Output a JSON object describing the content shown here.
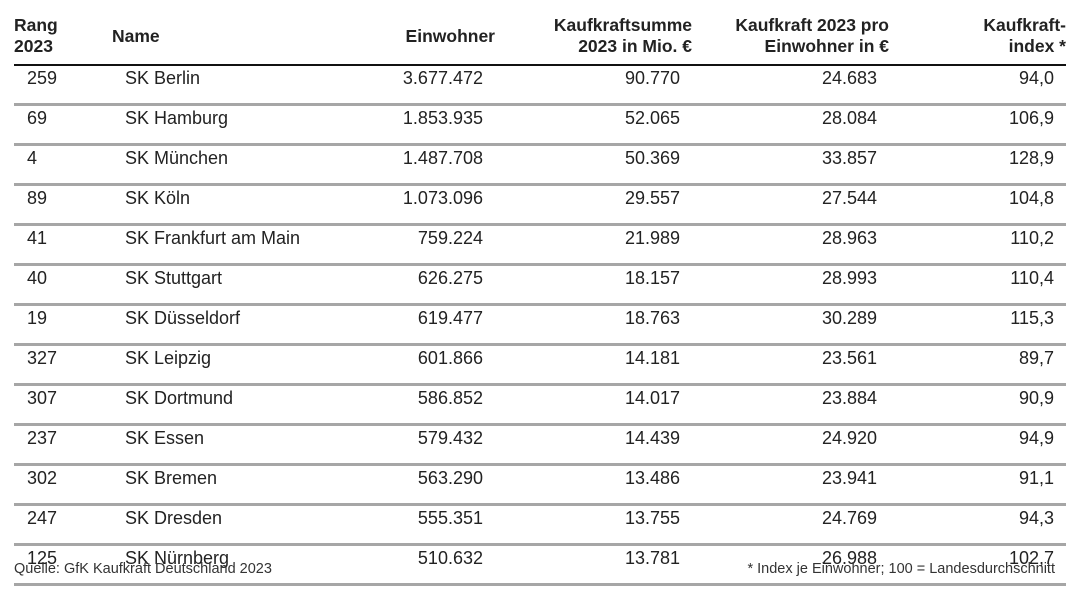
{
  "table": {
    "headers": {
      "rank": [
        "Rang",
        "2023"
      ],
      "name": [
        "Name"
      ],
      "population": [
        "Einwohner"
      ],
      "purchasing_total": [
        "Kaufkraftsumme",
        "2023 in Mio. €"
      ],
      "purchasing_per_capita": [
        "Kaufkraft 2023 pro",
        "Einwohner in €"
      ],
      "index": [
        "Kaufkraft-",
        "index *"
      ]
    },
    "rows": [
      {
        "rank": "259",
        "name": "SK Berlin",
        "population": "3.677.472",
        "purchasing_total": "90.770",
        "purchasing_per_capita": "24.683",
        "index": "94,0"
      },
      {
        "rank": "69",
        "name": "SK Hamburg",
        "population": "1.853.935",
        "purchasing_total": "52.065",
        "purchasing_per_capita": "28.084",
        "index": "106,9"
      },
      {
        "rank": "4",
        "name": "SK München",
        "population": "1.487.708",
        "purchasing_total": "50.369",
        "purchasing_per_capita": "33.857",
        "index": "128,9"
      },
      {
        "rank": "89",
        "name": "SK Köln",
        "population": "1.073.096",
        "purchasing_total": "29.557",
        "purchasing_per_capita": "27.544",
        "index": "104,8"
      },
      {
        "rank": "41",
        "name": "SK Frankfurt am Main",
        "population": "759.224",
        "purchasing_total": "21.989",
        "purchasing_per_capita": "28.963",
        "index": "110,2"
      },
      {
        "rank": "40",
        "name": "SK Stuttgart",
        "population": "626.275",
        "purchasing_total": "18.157",
        "purchasing_per_capita": "28.993",
        "index": "110,4"
      },
      {
        "rank": "19",
        "name": "SK Düsseldorf",
        "population": "619.477",
        "purchasing_total": "18.763",
        "purchasing_per_capita": "30.289",
        "index": "115,3"
      },
      {
        "rank": "327",
        "name": "SK Leipzig",
        "population": "601.866",
        "purchasing_total": "14.181",
        "purchasing_per_capita": "23.561",
        "index": "89,7"
      },
      {
        "rank": "307",
        "name": "SK Dortmund",
        "population": "586.852",
        "purchasing_total": "14.017",
        "purchasing_per_capita": "23.884",
        "index": "90,9"
      },
      {
        "rank": "237",
        "name": "SK Essen",
        "population": "579.432",
        "purchasing_total": "14.439",
        "purchasing_per_capita": "24.920",
        "index": "94,9"
      },
      {
        "rank": "302",
        "name": "SK Bremen",
        "population": "563.290",
        "purchasing_total": "13.486",
        "purchasing_per_capita": "23.941",
        "index": "91,1"
      },
      {
        "rank": "247",
        "name": "SK Dresden",
        "population": "555.351",
        "purchasing_total": "13.755",
        "purchasing_per_capita": "24.769",
        "index": "94,3"
      },
      {
        "rank": "125",
        "name": "SK Nürnberg",
        "population": "510.632",
        "purchasing_total": "13.781",
        "purchasing_per_capita": "26.988",
        "index": "102,7"
      }
    ]
  },
  "footer": {
    "source": "Quelle: GfK Kaufkraft Deutschland 2023",
    "note": "* Index je Einwohner; 100 = Landesdurchschnitt"
  }
}
